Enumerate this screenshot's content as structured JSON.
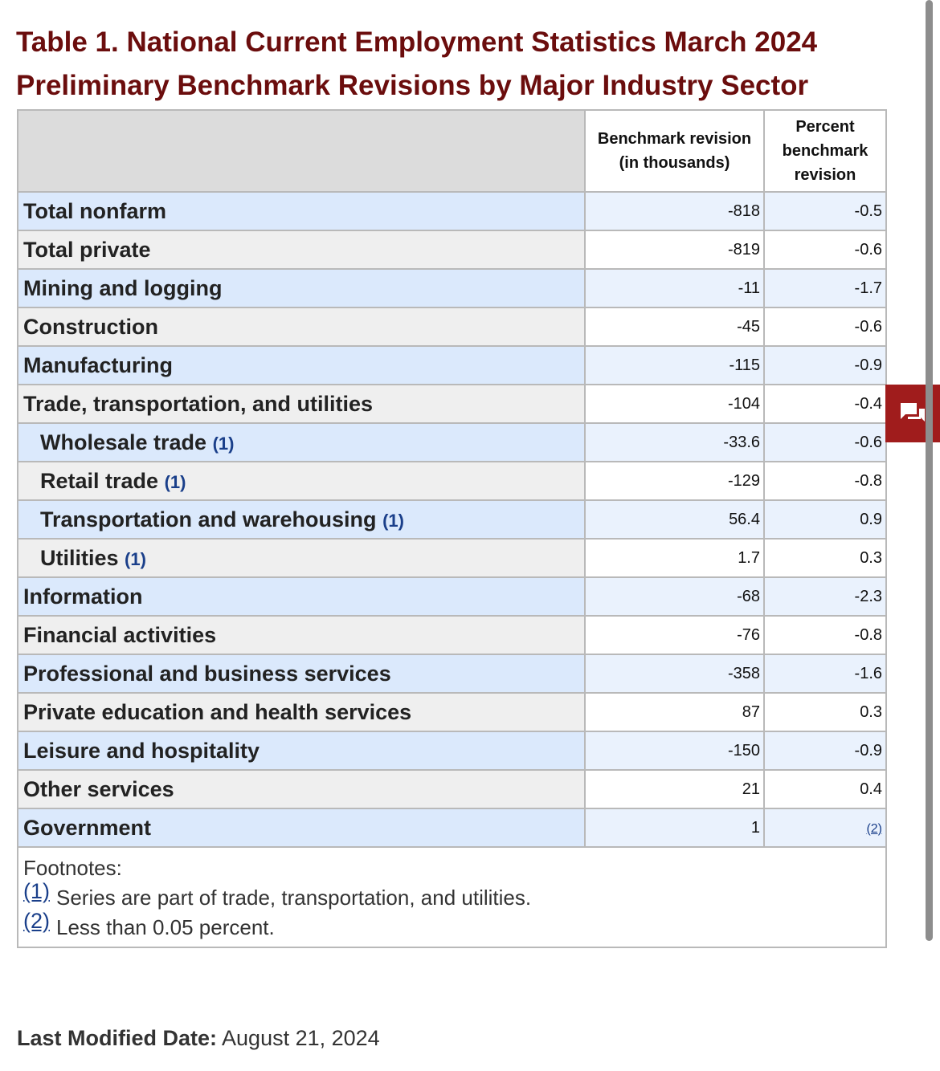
{
  "title": "Table 1. National Current Employment Statistics March 2024 Preliminary Benchmark Revisions by Major Industry Sector",
  "table": {
    "headers": [
      "",
      "Benchmark revision (in thousands)",
      "Percent benchmark revision"
    ],
    "rows": [
      {
        "label": "Total nonfarm",
        "revision": "-818",
        "percent": "-0.5"
      },
      {
        "label": "Total private",
        "revision": "-819",
        "percent": "-0.6"
      },
      {
        "label": "Mining and logging",
        "revision": "-11",
        "percent": "-1.7"
      },
      {
        "label": "Construction",
        "revision": "-45",
        "percent": "-0.6"
      },
      {
        "label": "Manufacturing",
        "revision": "-115",
        "percent": "-0.9"
      },
      {
        "label": "Trade, transportation, and utilities",
        "revision": "-104",
        "percent": "-0.4"
      },
      {
        "label": "Wholesale trade",
        "footnote": "(1)",
        "revision": "-33.6",
        "percent": "-0.6"
      },
      {
        "label": "Retail trade",
        "footnote": "(1)",
        "revision": "-129",
        "percent": "-0.8"
      },
      {
        "label": "Transportation and warehousing",
        "footnote": "(1)",
        "revision": "56.4",
        "percent": "0.9"
      },
      {
        "label": "Utilities",
        "footnote": "(1)",
        "revision": "1.7",
        "percent": "0.3"
      },
      {
        "label": "Information",
        "revision": "-68",
        "percent": "-2.3"
      },
      {
        "label": "Financial activities",
        "revision": "-76",
        "percent": "-0.8"
      },
      {
        "label": "Professional and business services",
        "revision": "-358",
        "percent": "-1.6"
      },
      {
        "label": "Private education and health services",
        "revision": "87",
        "percent": "0.3"
      },
      {
        "label": "Leisure and hospitality",
        "revision": "-150",
        "percent": "-0.9"
      },
      {
        "label": "Other services",
        "revision": "21",
        "percent": "0.4"
      },
      {
        "label": "Government",
        "revision": "1",
        "percent_footnote": "(2)"
      }
    ],
    "footnotes": {
      "title": "Footnotes:",
      "items": [
        {
          "ref": "(1)",
          "text": "Series are part of trade, transportation, and utilities."
        },
        {
          "ref": "(2)",
          "text": "Less than 0.05 percent."
        }
      ]
    }
  },
  "last_modified": {
    "label": "Last Modified Date:",
    "value": "August 21, 2024"
  },
  "colors": {
    "title": "#6b0d0d",
    "link": "#1a3f8a",
    "row_blue": "#dbe9fc",
    "row_gray": "#efefef",
    "feedback_button": "#a01c1c"
  },
  "icons": {
    "feedback": "chat-bubbles-icon"
  }
}
